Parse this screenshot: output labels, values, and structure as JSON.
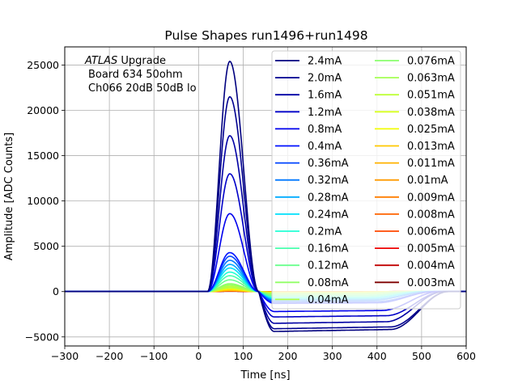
{
  "chart_data": {
    "type": "line",
    "title": "Pulse Shapes run1496+run1498",
    "xlabel": "Time [ns]",
    "ylabel": "Amplitude [ADC Counts]",
    "xlim": [
      -300,
      600
    ],
    "ylim": [
      -6000,
      27000
    ],
    "xticks": [
      -300,
      -200,
      -100,
      0,
      100,
      200,
      300,
      400,
      500,
      600
    ],
    "yticks": [
      -5000,
      0,
      5000,
      10000,
      15000,
      20000,
      25000
    ],
    "grid": true,
    "legend_placement": "top-right",
    "legend_columns": 2,
    "annotation": {
      "italic_word": "ATLAS",
      "line1_rest": " Upgrade",
      "line2": "Board 634 50ohm",
      "line3": "Ch066 20dB 50dB  lo"
    },
    "pulse_time_ns": {
      "start": 20,
      "peak": 70,
      "zero_cross": 135
    },
    "series": [
      {
        "name": "2.4mA",
        "peak": 25400,
        "undershoot": -4400,
        "recovery_end": 560,
        "color": "#00007f"
      },
      {
        "name": "2.0mA",
        "peak": 21500,
        "undershoot": -4100,
        "recovery_end": 560,
        "color": "#00008f"
      },
      {
        "name": "1.6mA",
        "peak": 17200,
        "undershoot": -3500,
        "recovery_end": 550,
        "color": "#0000a4"
      },
      {
        "name": "1.2mA",
        "peak": 13000,
        "undershoot": -2800,
        "recovery_end": 550,
        "color": "#0000c8"
      },
      {
        "name": "0.8mA",
        "peak": 8600,
        "undershoot": -2200,
        "recovery_end": 540,
        "color": "#0000ed"
      },
      {
        "name": "0.4mA",
        "peak": 4300,
        "undershoot": -1300,
        "recovery_end": 530,
        "color": "#0010ff"
      },
      {
        "name": "0.36mA",
        "peak": 3900,
        "undershoot": -1150,
        "recovery_end": 530,
        "color": "#0044ff"
      },
      {
        "name": "0.32mA",
        "peak": 3450,
        "undershoot": -1000,
        "recovery_end": 520,
        "color": "#0078ff"
      },
      {
        "name": "0.28mA",
        "peak": 3000,
        "undershoot": -900,
        "recovery_end": 520,
        "color": "#00acff"
      },
      {
        "name": "0.24mA",
        "peak": 2600,
        "undershoot": -800,
        "recovery_end": 510,
        "color": "#00e0fb"
      },
      {
        "name": "0.2mA",
        "peak": 2150,
        "undershoot": -700,
        "recovery_end": 510,
        "color": "#22ffd4"
      },
      {
        "name": "0.16mA",
        "peak": 1750,
        "undershoot": -600,
        "recovery_end": 500,
        "color": "#49ffad"
      },
      {
        "name": "0.12mA",
        "peak": 1300,
        "undershoot": -450,
        "recovery_end": 500,
        "color": "#6aff8d"
      },
      {
        "name": "0.08mA",
        "peak": 870,
        "undershoot": -300,
        "recovery_end": 490,
        "color": "#91ff66"
      },
      {
        "name": "0.04mA",
        "peak": 430,
        "undershoot": -180,
        "recovery_end": 480,
        "color": "#b1ff46"
      },
      {
        "name": "0.076mA",
        "peak": 820,
        "undershoot": -290,
        "recovery_end": 490,
        "color": "#8aff6d"
      },
      {
        "name": "0.063mA",
        "peak": 680,
        "undershoot": -250,
        "recovery_end": 490,
        "color": "#a4ff53"
      },
      {
        "name": "0.051mA",
        "peak": 550,
        "undershoot": -210,
        "recovery_end": 485,
        "color": "#beff39"
      },
      {
        "name": "0.038mA",
        "peak": 410,
        "undershoot": -170,
        "recovery_end": 480,
        "color": "#d7ff1f"
      },
      {
        "name": "0.025mA",
        "peak": 270,
        "undershoot": -110,
        "recovery_end": 470,
        "color": "#f1fc06"
      },
      {
        "name": "0.013mA",
        "peak": 140,
        "undershoot": -60,
        "recovery_end": 460,
        "color": "#ffc800"
      },
      {
        "name": "0.011mA",
        "peak": 120,
        "undershoot": -50,
        "recovery_end": 460,
        "color": "#ffb100"
      },
      {
        "name": "0.01mA",
        "peak": 110,
        "undershoot": -45,
        "recovery_end": 460,
        "color": "#ff9a00"
      },
      {
        "name": "0.009mA",
        "peak": 100,
        "undershoot": -40,
        "recovery_end": 460,
        "color": "#ff7e00"
      },
      {
        "name": "0.008mA",
        "peak": 90,
        "undershoot": -35,
        "recovery_end": 460,
        "color": "#ff6300"
      },
      {
        "name": "0.006mA",
        "peak": 70,
        "undershoot": -30,
        "recovery_end": 460,
        "color": "#ff4800"
      },
      {
        "name": "0.005mA",
        "peak": 60,
        "undershoot": -25,
        "recovery_end": 460,
        "color": "#ee0000"
      },
      {
        "name": "0.004mA",
        "peak": 50,
        "undershoot": -20,
        "recovery_end": 460,
        "color": "#c10000"
      },
      {
        "name": "0.003mA",
        "peak": 40,
        "undershoot": -15,
        "recovery_end": 460,
        "color": "#7f0000"
      }
    ]
  }
}
